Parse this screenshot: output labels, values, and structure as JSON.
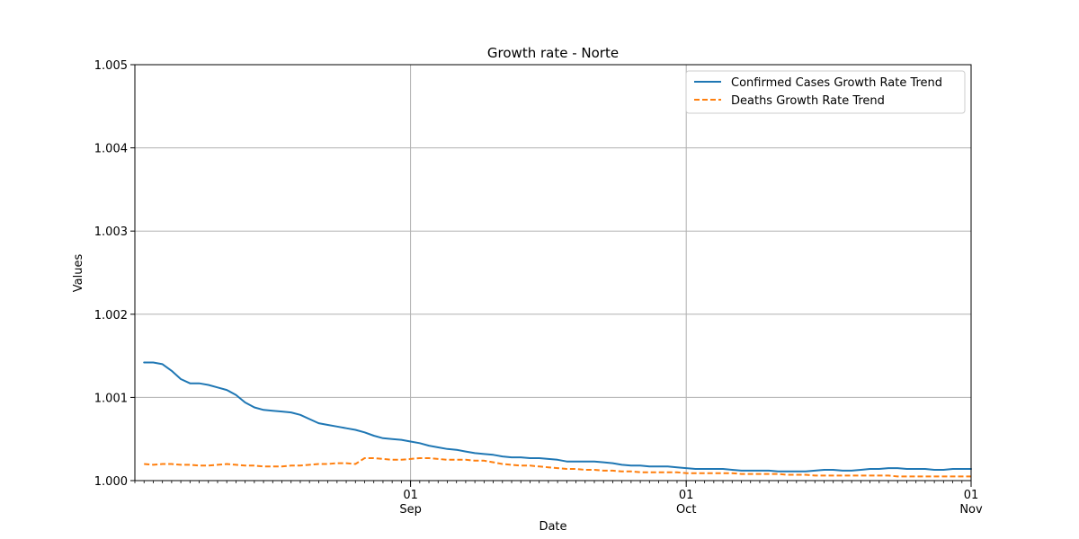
{
  "chart_data": {
    "type": "line",
    "title": "Growth rate - Norte",
    "xlabel": "Date",
    "ylabel": "Values",
    "xlim": [
      "2020-08-02",
      "2020-11-01"
    ],
    "ylim": [
      1.0,
      1.005
    ],
    "grid": true,
    "legend_position": "top-right",
    "x_major_ticks": [
      {
        "date": "2020-09-01",
        "label_day": "01",
        "label_month": "Sep"
      },
      {
        "date": "2020-10-01",
        "label_day": "01",
        "label_month": "Oct"
      },
      {
        "date": "2020-11-01",
        "label_day": "01",
        "label_month": "Nov"
      }
    ],
    "y_ticks": [
      "1.000",
      "1.001",
      "1.002",
      "1.003",
      "1.004",
      "1.005"
    ],
    "dates": [
      "2020-08-03",
      "2020-08-04",
      "2020-08-05",
      "2020-08-06",
      "2020-08-07",
      "2020-08-08",
      "2020-08-09",
      "2020-08-10",
      "2020-08-11",
      "2020-08-12",
      "2020-08-13",
      "2020-08-14",
      "2020-08-15",
      "2020-08-16",
      "2020-08-17",
      "2020-08-18",
      "2020-08-19",
      "2020-08-20",
      "2020-08-21",
      "2020-08-22",
      "2020-08-23",
      "2020-08-24",
      "2020-08-25",
      "2020-08-26",
      "2020-08-27",
      "2020-08-28",
      "2020-08-29",
      "2020-08-30",
      "2020-08-31",
      "2020-09-01",
      "2020-09-02",
      "2020-09-03",
      "2020-09-04",
      "2020-09-05",
      "2020-09-06",
      "2020-09-07",
      "2020-09-08",
      "2020-09-09",
      "2020-09-10",
      "2020-09-11",
      "2020-09-12",
      "2020-09-13",
      "2020-09-14",
      "2020-09-15",
      "2020-09-16",
      "2020-09-17",
      "2020-09-18",
      "2020-09-19",
      "2020-09-20",
      "2020-09-21",
      "2020-09-22",
      "2020-09-23",
      "2020-09-24",
      "2020-09-25",
      "2020-09-26",
      "2020-09-27",
      "2020-09-28",
      "2020-09-29",
      "2020-09-30",
      "2020-10-01",
      "2020-10-02",
      "2020-10-03",
      "2020-10-04",
      "2020-10-05",
      "2020-10-06",
      "2020-10-07",
      "2020-10-08",
      "2020-10-09",
      "2020-10-10",
      "2020-10-11",
      "2020-10-12",
      "2020-10-13",
      "2020-10-14",
      "2020-10-15",
      "2020-10-16",
      "2020-10-17",
      "2020-10-18",
      "2020-10-19",
      "2020-10-20",
      "2020-10-21",
      "2020-10-22",
      "2020-10-23",
      "2020-10-24",
      "2020-10-25",
      "2020-10-26",
      "2020-10-27",
      "2020-10-28",
      "2020-10-29",
      "2020-10-30",
      "2020-10-31",
      "2020-11-01"
    ],
    "series": [
      {
        "name": "Confirmed Cases Growth Rate Trend",
        "color": "#1f77b4",
        "style": "solid",
        "values": [
          1.00142,
          1.00142,
          1.0014,
          1.00132,
          1.00122,
          1.00117,
          1.00117,
          1.00115,
          1.00112,
          1.00109,
          1.00103,
          1.00094,
          1.00088,
          1.00085,
          1.00084,
          1.00083,
          1.00082,
          1.00079,
          1.00074,
          1.00069,
          1.00067,
          1.00065,
          1.00063,
          1.00061,
          1.00058,
          1.00054,
          1.00051,
          1.0005,
          1.00049,
          1.00047,
          1.00045,
          1.00042,
          1.0004,
          1.00038,
          1.00037,
          1.00035,
          1.00033,
          1.00032,
          1.00031,
          1.00029,
          1.00028,
          1.00028,
          1.00027,
          1.00027,
          1.00026,
          1.00025,
          1.00023,
          1.00023,
          1.00023,
          1.00023,
          1.00022,
          1.00021,
          1.00019,
          1.00018,
          1.00018,
          1.00017,
          1.00017,
          1.00017,
          1.00016,
          1.00015,
          1.00014,
          1.00014,
          1.00014,
          1.00014,
          1.00013,
          1.00012,
          1.00012,
          1.00012,
          1.00012,
          1.00011,
          1.00011,
          1.00011,
          1.00011,
          1.00012,
          1.00013,
          1.00013,
          1.00012,
          1.00012,
          1.00013,
          1.00014,
          1.00014,
          1.00015,
          1.00015,
          1.00014,
          1.00014,
          1.00014,
          1.00013,
          1.00013,
          1.00014,
          1.00014,
          1.00014
        ]
      },
      {
        "name": "Deaths Growth Rate Trend",
        "color": "#ff7f0e",
        "style": "dashed",
        "values": [
          1.0002,
          1.00019,
          1.0002,
          1.0002,
          1.00019,
          1.00019,
          1.00018,
          1.00018,
          1.00019,
          1.0002,
          1.00019,
          1.00018,
          1.00018,
          1.00017,
          1.00017,
          1.00017,
          1.00018,
          1.00018,
          1.00019,
          1.0002,
          1.0002,
          1.00021,
          1.00021,
          1.0002,
          1.00027,
          1.00027,
          1.00026,
          1.00025,
          1.00025,
          1.00026,
          1.00027,
          1.00027,
          1.00026,
          1.00025,
          1.00025,
          1.00025,
          1.00024,
          1.00024,
          1.00022,
          1.0002,
          1.00019,
          1.00018,
          1.00018,
          1.00017,
          1.00016,
          1.00015,
          1.00014,
          1.00014,
          1.00013,
          1.00013,
          1.00012,
          1.00012,
          1.00011,
          1.00011,
          1.0001,
          1.0001,
          1.0001,
          1.0001,
          1.0001,
          1.00009,
          1.00009,
          1.00009,
          1.00009,
          1.00009,
          1.00009,
          1.00008,
          1.00008,
          1.00008,
          1.00008,
          1.00008,
          1.00007,
          1.00007,
          1.00007,
          1.00006,
          1.00006,
          1.00006,
          1.00006,
          1.00006,
          1.00006,
          1.00006,
          1.00006,
          1.00006,
          1.00005,
          1.00005,
          1.00005,
          1.00005,
          1.00005,
          1.00005,
          1.00005,
          1.00005,
          1.00005
        ]
      }
    ]
  }
}
